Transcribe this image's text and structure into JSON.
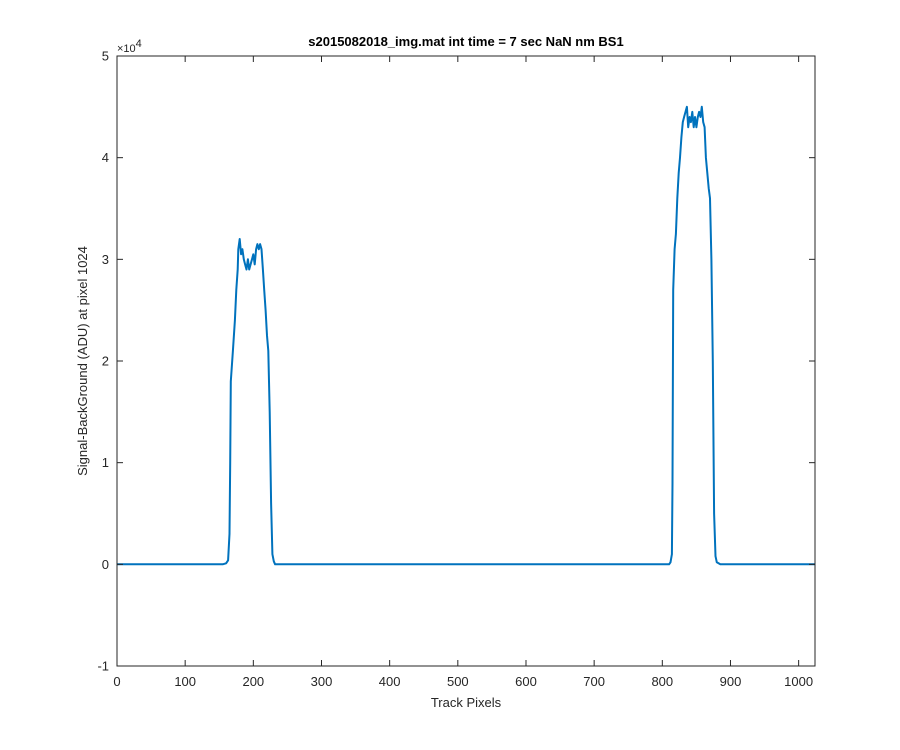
{
  "chart_data": {
    "type": "line",
    "title": "s2015082018_img.mat int time = 7 sec  NaN nm BS1",
    "xlabel": "Track Pixels",
    "ylabel": "Signal-BackGround (ADU) at pixel 1024",
    "xlim": [
      0,
      1024
    ],
    "ylim": [
      -10000,
      50000
    ],
    "y_multiplier_label": "×10",
    "y_multiplier_exponent": "4",
    "x_ticks": [
      0,
      100,
      200,
      300,
      400,
      500,
      600,
      700,
      800,
      900,
      1000
    ],
    "x_tick_labels": [
      "0",
      "100",
      "200",
      "300",
      "400",
      "500",
      "600",
      "700",
      "800",
      "900",
      "1000"
    ],
    "y_ticks": [
      -10000,
      0,
      10000,
      20000,
      30000,
      40000,
      50000
    ],
    "y_tick_labels": [
      "-1",
      "0",
      "1",
      "2",
      "3",
      "4",
      "5"
    ],
    "grid": false,
    "series": [
      {
        "color": "#0072bd",
        "x": [
          0,
          155,
          160,
          163,
          165,
          166,
          167,
          170,
          173,
          175,
          177,
          178,
          180,
          182,
          184,
          186,
          188,
          190,
          192,
          194,
          196,
          198,
          200,
          202,
          204,
          206,
          208,
          210,
          212,
          214,
          216,
          218,
          220,
          222,
          224,
          226,
          228,
          230,
          232,
          236,
          300,
          400,
          500,
          600,
          700,
          800,
          810,
          812,
          814,
          815,
          816,
          818,
          820,
          822,
          824,
          826,
          828,
          830,
          832,
          834,
          836,
          838,
          840,
          842,
          844,
          846,
          848,
          850,
          852,
          854,
          856,
          858,
          860,
          862,
          864,
          866,
          868,
          870,
          872,
          874,
          876,
          878,
          880,
          885,
          900,
          950,
          1024
        ],
        "y": [
          0,
          0,
          100,
          400,
          3000,
          10000,
          18000,
          21000,
          24000,
          27000,
          29000,
          31000,
          32000,
          30500,
          31000,
          30000,
          29500,
          29000,
          30000,
          29000,
          29500,
          30000,
          30500,
          29500,
          31000,
          31500,
          31000,
          31500,
          31000,
          29000,
          27000,
          25000,
          22500,
          21000,
          15000,
          6000,
          1000,
          300,
          0,
          0,
          0,
          0,
          0,
          0,
          0,
          0,
          0,
          200,
          1000,
          8000,
          27000,
          31000,
          32500,
          36000,
          38500,
          40000,
          42000,
          43500,
          44000,
          44500,
          45000,
          43000,
          44000,
          43500,
          44500,
          43000,
          44000,
          43000,
          44000,
          44500,
          44000,
          45000,
          43500,
          43000,
          40000,
          38500,
          37000,
          36000,
          30000,
          20000,
          5000,
          800,
          200,
          0,
          0,
          0,
          0
        ]
      }
    ]
  }
}
